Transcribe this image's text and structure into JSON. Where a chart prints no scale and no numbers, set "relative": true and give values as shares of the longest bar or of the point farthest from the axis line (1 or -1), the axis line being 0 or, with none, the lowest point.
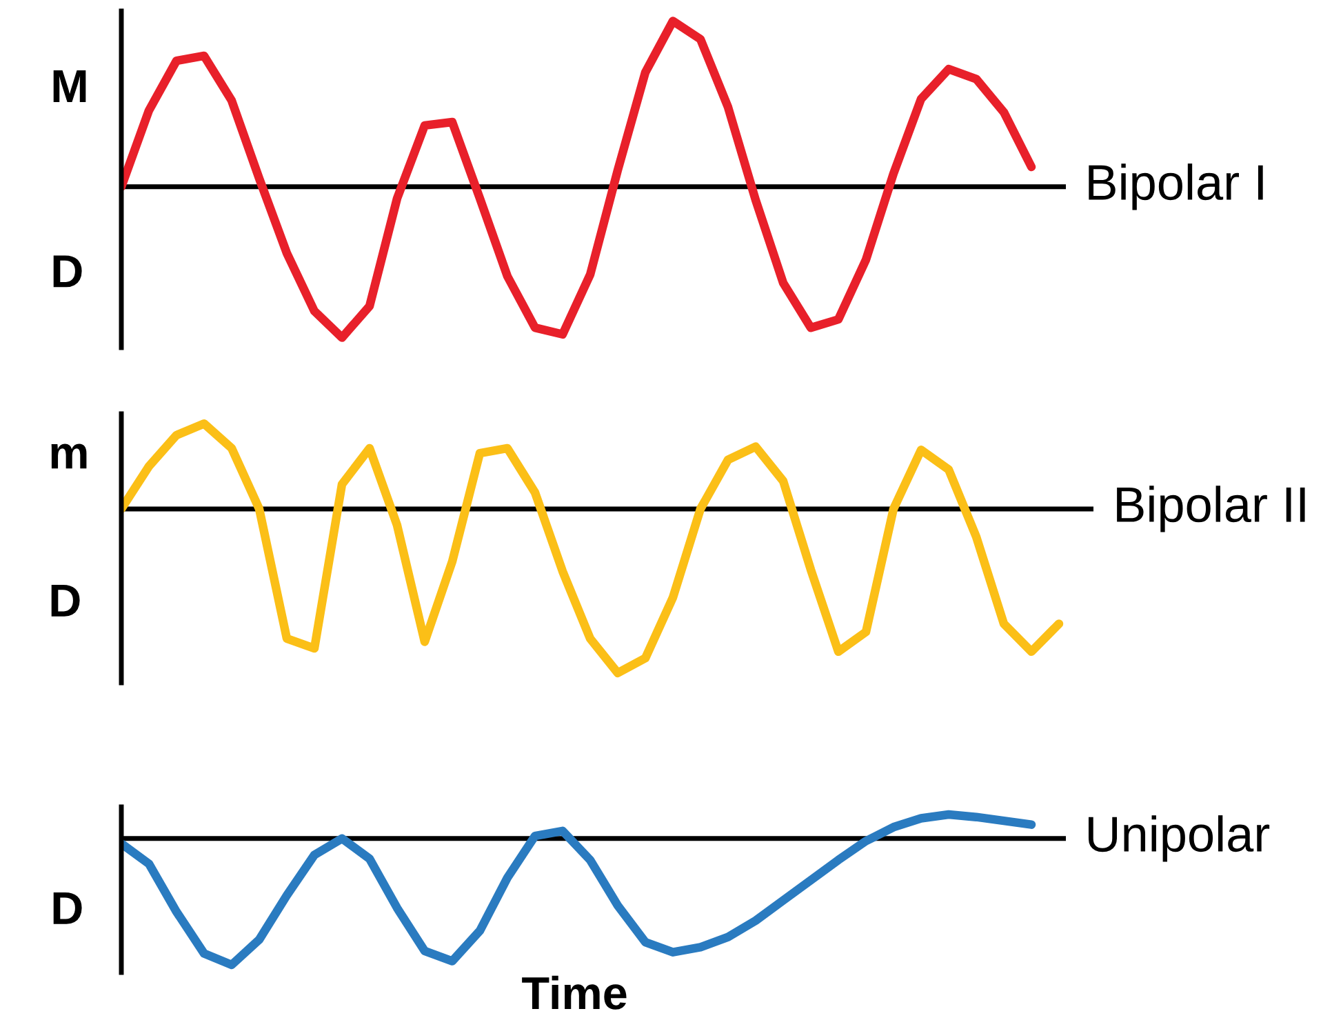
{
  "chart_data": [
    {
      "type": "line",
      "relative": true,
      "categories": [
        null,
        null,
        null,
        null,
        null,
        null,
        null,
        null,
        null,
        null,
        null,
        null,
        null,
        null,
        null,
        null,
        null,
        null,
        null,
        null,
        null,
        null,
        null,
        null,
        null,
        null,
        null,
        null,
        null,
        null,
        null,
        null,
        null,
        null
      ],
      "annotations": [
        "M",
        "D"
      ],
      "series": [
        {
          "name": "Bipolar I",
          "color": "#e8202a",
          "values": [
            0,
            0.46,
            0.76,
            0.79,
            0.52,
            0.05,
            -0.4,
            -0.75,
            -0.91,
            -0.72,
            -0.07,
            0.37,
            0.39,
            -0.07,
            -0.54,
            -0.85,
            -0.89,
            -0.53,
            0.1,
            0.69,
            1.0,
            0.89,
            0.48,
            -0.08,
            -0.58,
            -0.85,
            -0.8,
            -0.44,
            0.08,
            0.53,
            0.71,
            0.65,
            0.45,
            0.12
          ]
        }
      ]
    },
    {
      "type": "line",
      "relative": true,
      "categories": [
        null,
        null,
        null,
        null,
        null,
        null,
        null,
        null,
        null,
        null,
        null,
        null,
        null,
        null,
        null,
        null,
        null,
        null,
        null,
        null,
        null,
        null,
        null,
        null,
        null,
        null,
        null,
        null,
        null,
        null,
        null,
        null,
        null,
        null,
        null
      ],
      "annotations": [
        "m",
        "D"
      ],
      "series": [
        {
          "name": "Bipolar II",
          "color": "#fbbf17",
          "values": [
            0,
            0.26,
            0.45,
            0.52,
            0.37,
            0,
            -0.79,
            -0.85,
            0.15,
            0.37,
            -0.1,
            -0.81,
            -0.32,
            0.34,
            0.37,
            0.1,
            -0.38,
            -0.79,
            -1,
            -0.91,
            -0.54,
            0,
            0.3,
            0.38,
            0.17,
            -0.37,
            -0.87,
            -0.75,
            0,
            0.36,
            0.24,
            -0.17,
            -0.7,
            -0.87,
            -0.7
          ]
        }
      ]
    },
    {
      "type": "line",
      "relative": true,
      "xlabel": "Time",
      "categories": [
        null,
        null,
        null,
        null,
        null,
        null,
        null,
        null,
        null,
        null,
        null,
        null,
        null,
        null,
        null,
        null,
        null,
        null,
        null,
        null,
        null,
        null,
        null,
        null,
        null,
        null,
        null,
        null,
        null,
        null,
        null,
        null,
        null,
        null
      ],
      "annotations": [
        "D"
      ],
      "series": [
        {
          "name": "Unipolar",
          "color": "#2a7bc0",
          "values": [
            -0.04,
            -0.2,
            -0.58,
            -0.91,
            -1,
            -0.8,
            -0.45,
            -0.13,
            0,
            -0.16,
            -0.55,
            -0.89,
            -0.97,
            -0.73,
            -0.31,
            0.02,
            0.06,
            -0.17,
            -0.53,
            -0.82,
            -0.9,
            -0.86,
            -0.78,
            -0.65,
            -0.49,
            -0.33,
            -0.17,
            -0.02,
            0.09,
            0.16,
            0.19,
            0.17,
            0.14,
            0.11
          ]
        }
      ]
    }
  ]
}
